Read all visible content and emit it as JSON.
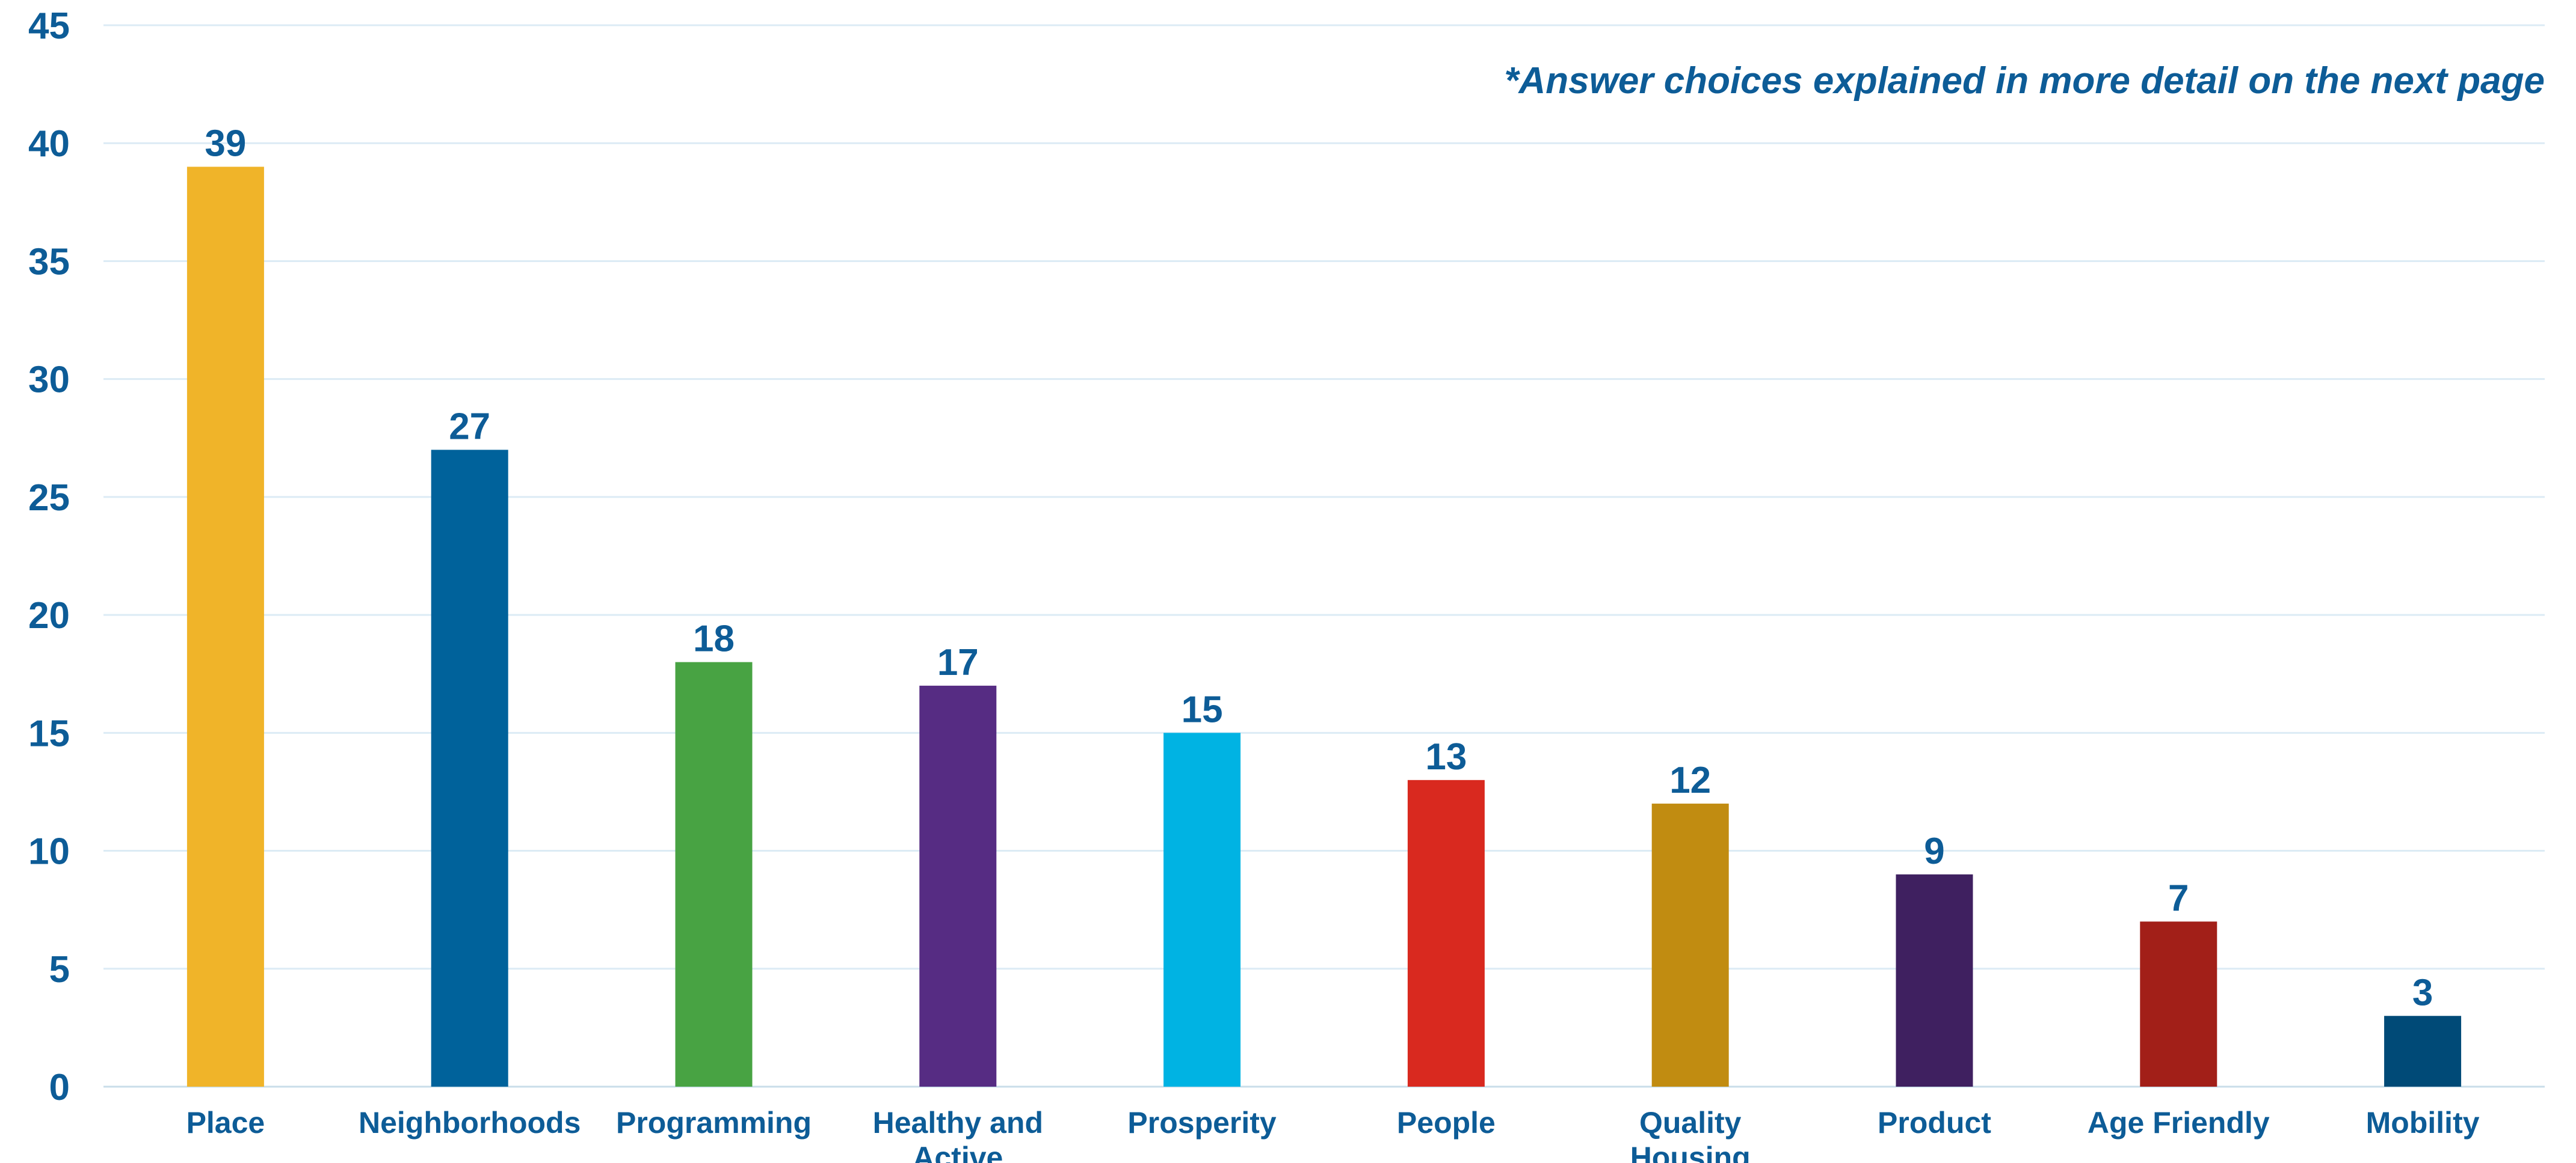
{
  "chart_data": {
    "type": "bar",
    "categories": [
      "Place",
      "Neighborhoods",
      "Programming",
      "Healthy and Active",
      "Prosperity",
      "People",
      "Quality Housing",
      "Product",
      "Age Friendly",
      "Mobility"
    ],
    "values": [
      39,
      27,
      18,
      17,
      15,
      13,
      12,
      9,
      7,
      3
    ],
    "colors": [
      "#f0b429",
      "#00629b",
      "#48a343",
      "#562c83",
      "#00b3e3",
      "#d9291f",
      "#c18c11",
      "#3f2060",
      "#a21f18",
      "#004a77"
    ],
    "ylim": [
      0,
      45
    ],
    "yticks": [
      0,
      5,
      10,
      15,
      20,
      25,
      30,
      35,
      40,
      45
    ],
    "title": "",
    "xlabel": "",
    "ylabel": "",
    "annotation": "*Answer choices explained in more detail on the next page",
    "grid": true,
    "text_color": "#0d5c97",
    "grid_color": "#dcebf5"
  }
}
